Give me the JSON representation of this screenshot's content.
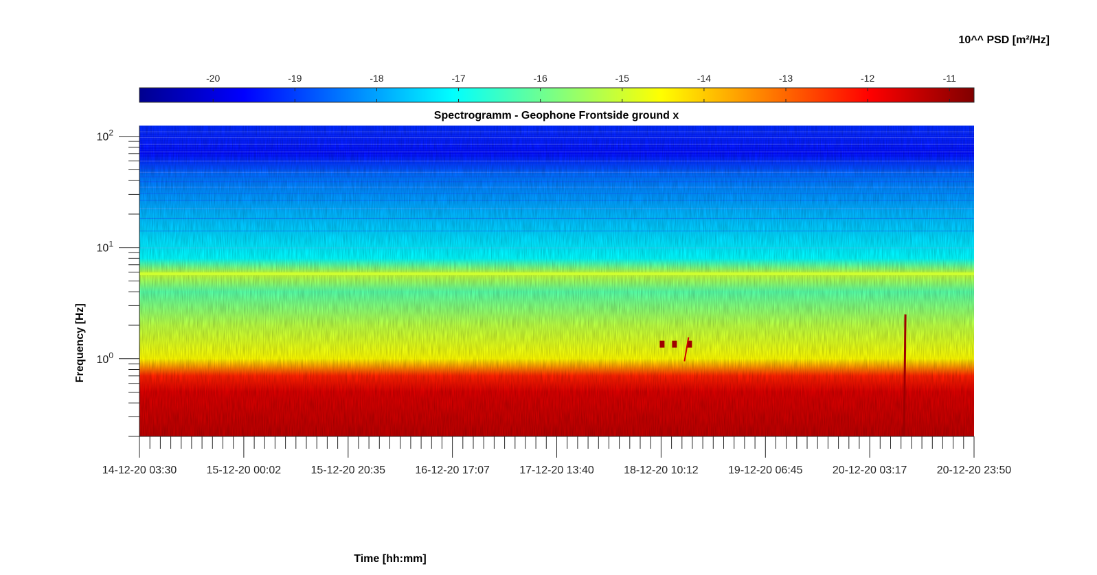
{
  "chart_data": {
    "type": "heatmap",
    "title": "Spectrogramm - Geophone Frontside ground x",
    "xlabel": "Time [hh:mm]",
    "ylabel": "Frequency [Hz]",
    "colorbar_label": "10^^ PSD [m²/Hz]",
    "colormap": "jet",
    "y_scale": "log",
    "y_range_hz": [
      0.2,
      125
    ],
    "x_range": [
      "14-12-20 03:30",
      "20-12-20 23:50"
    ],
    "x_tick_labels": [
      "14-12-20 03:30",
      "15-12-20 00:02",
      "15-12-20 20:35",
      "16-12-20 17:07",
      "17-12-20 13:40",
      "18-12-20 10:12",
      "19-12-20 06:45",
      "20-12-20 03:17",
      "20-12-20 23:50"
    ],
    "x_minor_ticks_per_major": 5,
    "y_ticks": [
      {
        "base": "10",
        "exp": "0",
        "value": 1
      },
      {
        "base": "10",
        "exp": "1",
        "value": 10
      },
      {
        "base": "10",
        "exp": "2",
        "value": 100
      }
    ],
    "colorbar_range": [
      -20.9,
      -10.7
    ],
    "colorbar_ticks": [
      "-20",
      "-19",
      "-18",
      "-17",
      "-16",
      "-15",
      "-14",
      "-13",
      "-12",
      "-11"
    ],
    "colorbar_tick_values": [
      -20,
      -19,
      -18,
      -17,
      -16,
      -15,
      -14,
      -13,
      -12,
      -11
    ],
    "psd_profile_log10": [
      {
        "freq_hz": 0.2,
        "psd": -11.3
      },
      {
        "freq_hz": 0.5,
        "psd": -11.6
      },
      {
        "freq_hz": 0.7,
        "psd": -12.3
      },
      {
        "freq_hz": 1.0,
        "psd": -14.5
      },
      {
        "freq_hz": 2.0,
        "psd": -15.2
      },
      {
        "freq_hz": 4.0,
        "psd": -16.2
      },
      {
        "freq_hz": 5.8,
        "psd": -15.0
      },
      {
        "freq_hz": 8.0,
        "psd": -17.1
      },
      {
        "freq_hz": 20,
        "psd": -17.8
      },
      {
        "freq_hz": 45,
        "psd": -18.5
      },
      {
        "freq_hz": 70,
        "psd": -19.5
      },
      {
        "freq_hz": 125,
        "psd": -19.2
      }
    ],
    "notable_features": [
      {
        "kind": "narrowband_line",
        "freq_hz": 5.8,
        "psd": -15.0
      },
      {
        "kind": "burst",
        "time": "18-12-20 10:12",
        "freq_hz": 1.35,
        "psd": -11.0
      },
      {
        "kind": "transient",
        "time": "20-12-20 03:17",
        "freq_hz_max": 2.5,
        "psd": -11.0
      }
    ],
    "grid": false,
    "colorbar_position": "top"
  }
}
